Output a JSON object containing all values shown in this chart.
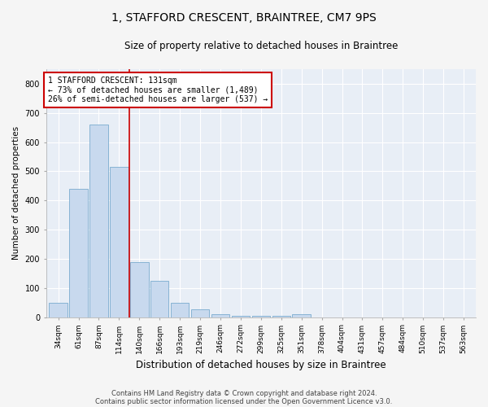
{
  "title": "1, STAFFORD CRESCENT, BRAINTREE, CM7 9PS",
  "subtitle": "Size of property relative to detached houses in Braintree",
  "xlabel": "Distribution of detached houses by size in Braintree",
  "ylabel": "Number of detached properties",
  "bar_color": "#c8d9ee",
  "bar_edge_color": "#7aabcf",
  "background_color": "#e8eef6",
  "grid_color": "#ffffff",
  "fig_background": "#f5f5f5",
  "categories": [
    "34sqm",
    "61sqm",
    "87sqm",
    "114sqm",
    "140sqm",
    "166sqm",
    "193sqm",
    "219sqm",
    "246sqm",
    "272sqm",
    "299sqm",
    "325sqm",
    "351sqm",
    "378sqm",
    "404sqm",
    "431sqm",
    "457sqm",
    "484sqm",
    "510sqm",
    "537sqm",
    "563sqm"
  ],
  "values": [
    50,
    440,
    660,
    515,
    190,
    125,
    50,
    27,
    10,
    5,
    4,
    4,
    10,
    0,
    0,
    0,
    0,
    0,
    0,
    0,
    0
  ],
  "property_line_x": 3.5,
  "property_line_color": "#cc0000",
  "annotation_text": "1 STAFFORD CRESCENT: 131sqm\n← 73% of detached houses are smaller (1,489)\n26% of semi-detached houses are larger (537) →",
  "annotation_box_color": "#cc0000",
  "ylim": [
    0,
    850
  ],
  "yticks": [
    0,
    100,
    200,
    300,
    400,
    500,
    600,
    700,
    800
  ],
  "footnote1": "Contains HM Land Registry data © Crown copyright and database right 2024.",
  "footnote2": "Contains public sector information licensed under the Open Government Licence v3.0.",
  "title_fontsize": 10,
  "subtitle_fontsize": 8.5,
  "xlabel_fontsize": 8.5,
  "ylabel_fontsize": 7.5,
  "tick_fontsize": 6.5,
  "footnote_fontsize": 6,
  "annotation_fontsize": 7
}
